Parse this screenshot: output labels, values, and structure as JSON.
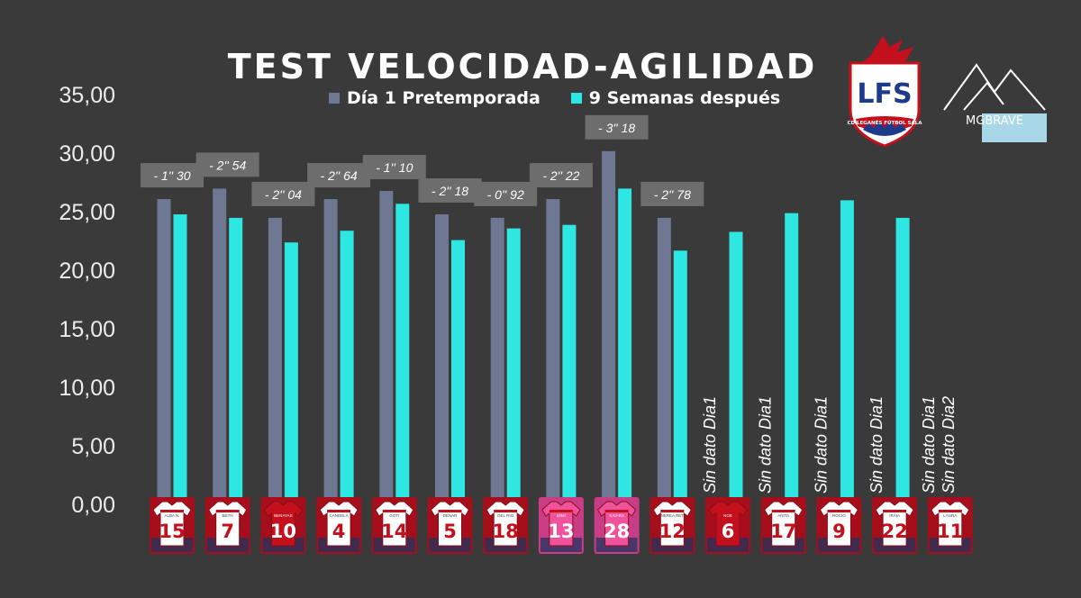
{
  "chart_data": {
    "type": "bar",
    "title": "TEST VELOCIDAD-AGILIDAD",
    "ylim": [
      0,
      35
    ],
    "yticks": [
      "0,00",
      "5,00",
      "10,00",
      "15,00",
      "20,00",
      "25,00",
      "30,00",
      "35,00"
    ],
    "legend_position": "top",
    "series": [
      {
        "name": "Día 1 Pretemporada",
        "color": "#6f7892",
        "values": [
          26.3,
          27.2,
          24.7,
          26.3,
          27.0,
          25.0,
          24.7,
          26.3,
          30.4,
          24.7,
          null,
          null,
          null,
          null,
          null
        ]
      },
      {
        "name": "9 Semanas después",
        "color": "#2ee6e2",
        "values": [
          25.0,
          24.7,
          22.6,
          23.6,
          25.9,
          22.8,
          23.8,
          24.1,
          27.2,
          21.9,
          23.5,
          25.1,
          26.2,
          24.7,
          null
        ]
      }
    ],
    "players": [
      {
        "name": "ALBA N.",
        "number": "15",
        "shirt": "white"
      },
      {
        "name": "BEITA",
        "number": "7",
        "shirt": "white"
      },
      {
        "name": "BENAYAS",
        "number": "10",
        "shirt": "red"
      },
      {
        "name": "CANDELA",
        "number": "4",
        "shirt": "white"
      },
      {
        "name": "GOTI",
        "number": "14",
        "shirt": "white"
      },
      {
        "name": "DENAR",
        "number": "5",
        "shirt": "white"
      },
      {
        "name": "DEL RIO",
        "number": "18",
        "shirt": "white"
      },
      {
        "name": "MIMI",
        "number": "13",
        "shirt": "pink"
      },
      {
        "name": "KAIARA",
        "number": "28",
        "shirt": "pink"
      },
      {
        "name": "NEREA RET",
        "number": "12",
        "shirt": "white"
      },
      {
        "name": "NOE",
        "number": "6",
        "shirt": "red"
      },
      {
        "name": "ANITA",
        "number": "17",
        "shirt": "white"
      },
      {
        "name": "ROCIO",
        "number": "9",
        "shirt": "white"
      },
      {
        "name": "IRAIA",
        "number": "22",
        "shirt": "white"
      },
      {
        "name": "LAURA",
        "number": "11",
        "shirt": "white"
      }
    ],
    "annotations": [
      {
        "index": 0,
        "text": "- 1'' 30"
      },
      {
        "index": 1,
        "text": "- 2'' 54"
      },
      {
        "index": 2,
        "text": "- 2'' 04"
      },
      {
        "index": 3,
        "text": "- 2'' 64"
      },
      {
        "index": 4,
        "text": "- 1'' 10"
      },
      {
        "index": 5,
        "text": "- 2'' 18"
      },
      {
        "index": 6,
        "text": "- 0'' 92"
      },
      {
        "index": 7,
        "text": "- 2'' 22"
      },
      {
        "index": 8,
        "text": "- 3'' 18"
      },
      {
        "index": 9,
        "text": "- 2'' 78"
      }
    ],
    "notes": [
      {
        "index": 10,
        "lines": [
          "Sin dato Dia1"
        ]
      },
      {
        "index": 11,
        "lines": [
          "Sin dato Dia1"
        ]
      },
      {
        "index": 12,
        "lines": [
          "Sin dato Dia1"
        ]
      },
      {
        "index": 13,
        "lines": [
          "Sin dato Dia1"
        ]
      },
      {
        "index": 14,
        "lines": [
          "Sin dato Dia1",
          "Sin dato Dia2"
        ]
      }
    ]
  },
  "logos": {
    "lfs_text": "LFS",
    "lfs_subtitle": "CD LEGANÉS FÚTBOL SALA",
    "mg_text": "MGBRAVE"
  },
  "colors": {
    "background": "#3a3a3b",
    "annotation_box": "#6d6d6e",
    "shirt_red": "#c4101c",
    "shirt_pink": "#f0529c"
  }
}
